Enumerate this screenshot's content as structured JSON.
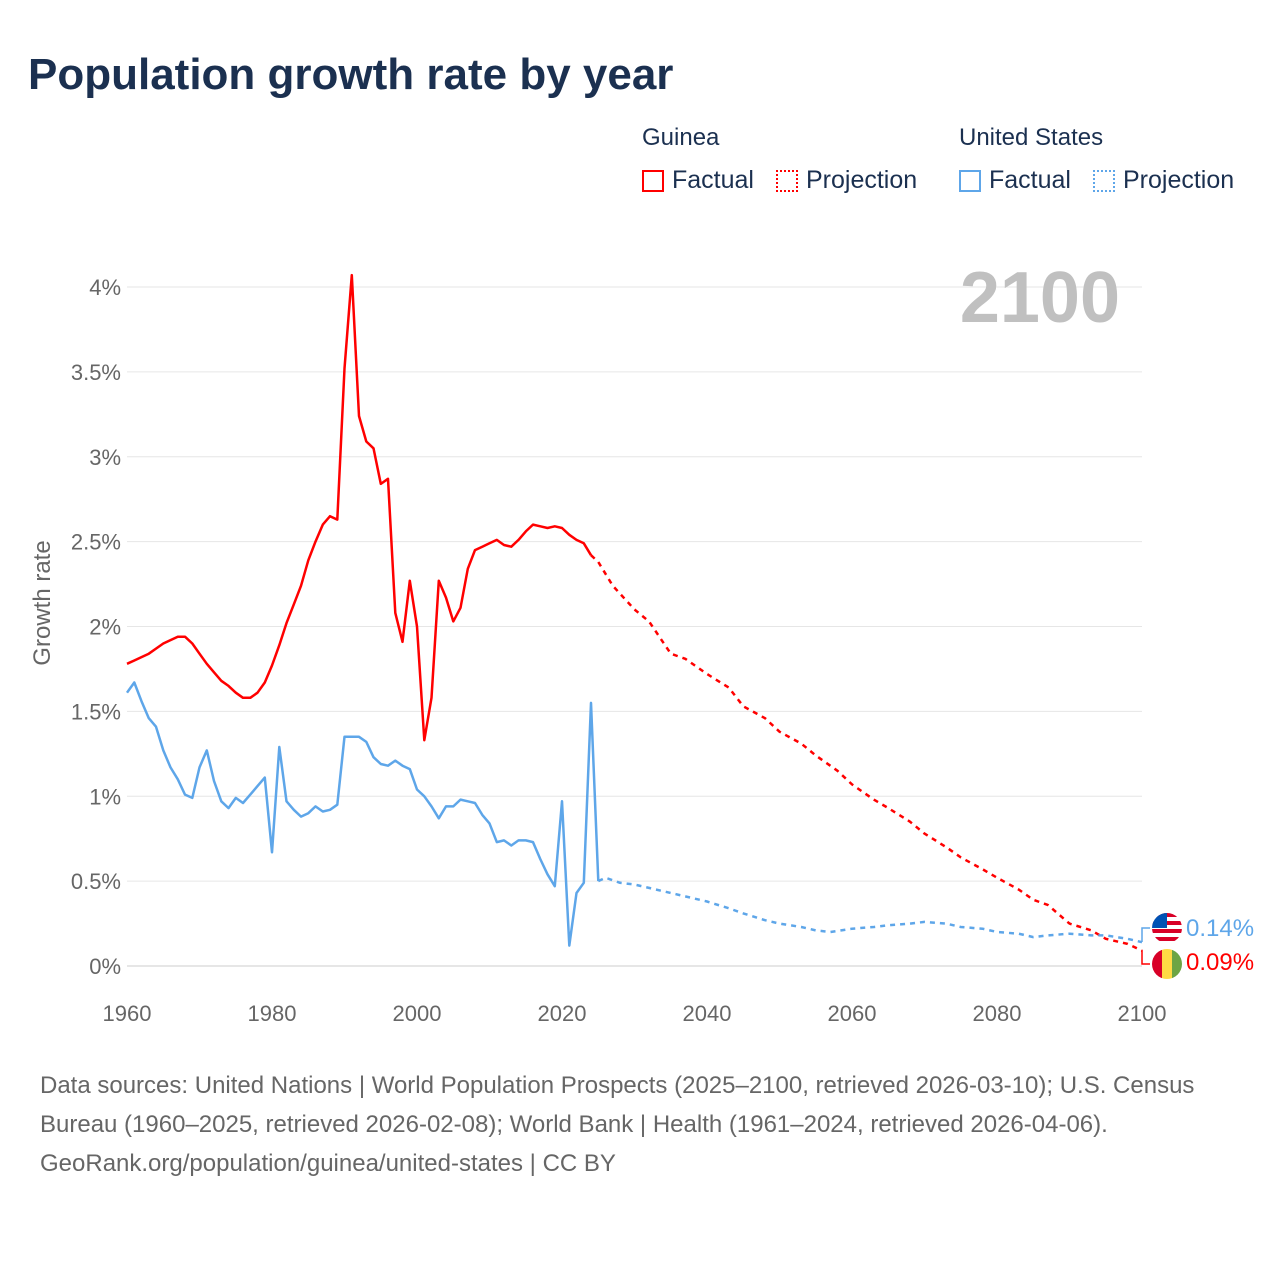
{
  "title": "Population growth rate by year",
  "legend": {
    "groups": [
      {
        "name": "Guinea",
        "factual": "Factual",
        "projection": "Projection",
        "color": "#ff0000"
      },
      {
        "name": "United States",
        "factual": "Factual",
        "projection": "Projection",
        "color": "#5ea6e9"
      }
    ]
  },
  "year_label": "2100",
  "end_labels": [
    {
      "country": "United States",
      "value": "0.14%",
      "icon": "us-flag-icon"
    },
    {
      "country": "Guinea",
      "value": "0.09%",
      "icon": "guinea-flag-icon"
    }
  ],
  "chart_data": {
    "type": "line",
    "title": "Population growth rate by year",
    "xlabel": "",
    "ylabel": "Growth rate",
    "xlim": [
      1960,
      2100
    ],
    "ylim": [
      0,
      4
    ],
    "x_ticks": [
      "1960",
      "1980",
      "2000",
      "2020",
      "2040",
      "2060",
      "2080",
      "2100"
    ],
    "x_tick_values": [
      1960,
      1980,
      2000,
      2020,
      2040,
      2060,
      2080,
      2100
    ],
    "y_ticks": [
      "0%",
      "0.5%",
      "1%",
      "1.5%",
      "2%",
      "2.5%",
      "3%",
      "3.5%",
      "4%"
    ],
    "y_tick_values": [
      0,
      0.5,
      1,
      1.5,
      2,
      2.5,
      3,
      3.5,
      4
    ],
    "grid": true,
    "legend_position": "top-right",
    "series": [
      {
        "name": "Guinea Factual",
        "color": "#ff0000",
        "dashed": false,
        "x": [
          1960,
          1961,
          1962,
          1963,
          1964,
          1965,
          1966,
          1967,
          1968,
          1969,
          1970,
          1971,
          1972,
          1973,
          1974,
          1975,
          1976,
          1977,
          1978,
          1979,
          1980,
          1981,
          1982,
          1983,
          1984,
          1985,
          1986,
          1987,
          1988,
          1989,
          1990,
          1991,
          1992,
          1993,
          1994,
          1995,
          1996,
          1997,
          1998,
          1999,
          2000,
          2001,
          2002,
          2003,
          2004,
          2005,
          2006,
          2007,
          2008,
          2009,
          2010,
          2011,
          2012,
          2013,
          2014,
          2015,
          2016,
          2017,
          2018,
          2019,
          2020,
          2021,
          2022,
          2023,
          2024
        ],
        "y": [
          1.78,
          1.8,
          1.82,
          1.84,
          1.87,
          1.9,
          1.92,
          1.94,
          1.94,
          1.9,
          1.84,
          1.78,
          1.73,
          1.68,
          1.65,
          1.61,
          1.58,
          1.58,
          1.61,
          1.67,
          1.77,
          1.89,
          2.02,
          2.13,
          2.24,
          2.39,
          2.5,
          2.6,
          2.65,
          2.63,
          3.52,
          4.07,
          3.24,
          3.09,
          3.05,
          2.84,
          2.87,
          2.08,
          1.91,
          2.27,
          2.0,
          1.33,
          1.58,
          2.27,
          2.17,
          2.03,
          2.11,
          2.34,
          2.45,
          2.47,
          2.49,
          2.51,
          2.48,
          2.47,
          2.51,
          2.56,
          2.6,
          2.59,
          2.58,
          2.59,
          2.58,
          2.54,
          2.51,
          2.49,
          2.42
        ]
      },
      {
        "name": "Guinea Projection",
        "color": "#ff0000",
        "dashed": true,
        "x": [
          2024,
          2025,
          2027,
          2030,
          2032,
          2035,
          2037,
          2040,
          2043,
          2045,
          2048,
          2050,
          2053,
          2055,
          2058,
          2060,
          2063,
          2065,
          2068,
          2070,
          2073,
          2075,
          2078,
          2080,
          2083,
          2085,
          2087,
          2090,
          2093,
          2095,
          2098,
          2100
        ],
        "y": [
          2.42,
          2.38,
          2.24,
          2.1,
          2.03,
          1.84,
          1.81,
          1.72,
          1.64,
          1.53,
          1.46,
          1.38,
          1.31,
          1.24,
          1.15,
          1.07,
          0.98,
          0.93,
          0.85,
          0.78,
          0.7,
          0.64,
          0.57,
          0.52,
          0.45,
          0.39,
          0.36,
          0.25,
          0.21,
          0.16,
          0.13,
          0.09
        ]
      },
      {
        "name": "United States Factual",
        "color": "#5ea6e9",
        "dashed": false,
        "x": [
          1960,
          1961,
          1962,
          1963,
          1964,
          1965,
          1966,
          1967,
          1968,
          1969,
          1970,
          1971,
          1972,
          1973,
          1974,
          1975,
          1976,
          1977,
          1978,
          1979,
          1980,
          1981,
          1982,
          1983,
          1984,
          1985,
          1986,
          1987,
          1988,
          1989,
          1990,
          1991,
          1992,
          1993,
          1994,
          1995,
          1996,
          1997,
          1998,
          1999,
          2000,
          2001,
          2002,
          2003,
          2004,
          2005,
          2006,
          2007,
          2008,
          2009,
          2010,
          2011,
          2012,
          2013,
          2014,
          2015,
          2016,
          2017,
          2018,
          2019,
          2020,
          2021,
          2022,
          2023,
          2024,
          2025
        ],
        "y": [
          1.61,
          1.67,
          1.56,
          1.46,
          1.41,
          1.27,
          1.17,
          1.1,
          1.01,
          0.99,
          1.17,
          1.27,
          1.09,
          0.97,
          0.93,
          0.99,
          0.96,
          1.01,
          1.06,
          1.11,
          0.67,
          1.29,
          0.97,
          0.92,
          0.88,
          0.9,
          0.94,
          0.91,
          0.92,
          0.95,
          1.35,
          1.35,
          1.35,
          1.32,
          1.23,
          1.19,
          1.18,
          1.21,
          1.18,
          1.16,
          1.04,
          1.0,
          0.94,
          0.87,
          0.94,
          0.94,
          0.98,
          0.97,
          0.96,
          0.89,
          0.84,
          0.73,
          0.74,
          0.71,
          0.74,
          0.74,
          0.73,
          0.63,
          0.54,
          0.47,
          0.97,
          0.12,
          0.43,
          0.49,
          1.55,
          0.5
        ]
      },
      {
        "name": "United States Projection",
        "color": "#5ea6e9",
        "dashed": true,
        "x": [
          2025,
          2026,
          2028,
          2030,
          2033,
          2035,
          2038,
          2040,
          2043,
          2045,
          2048,
          2050,
          2053,
          2055,
          2057,
          2060,
          2063,
          2065,
          2068,
          2070,
          2073,
          2075,
          2078,
          2080,
          2083,
          2085,
          2087,
          2090,
          2093,
          2095,
          2098,
          2100
        ],
        "y": [
          0.5,
          0.52,
          0.49,
          0.48,
          0.45,
          0.43,
          0.4,
          0.38,
          0.34,
          0.31,
          0.27,
          0.25,
          0.23,
          0.21,
          0.2,
          0.22,
          0.23,
          0.24,
          0.25,
          0.26,
          0.25,
          0.23,
          0.22,
          0.2,
          0.19,
          0.17,
          0.18,
          0.19,
          0.18,
          0.18,
          0.16,
          0.14
        ]
      }
    ]
  },
  "footer": {
    "sources": "Data sources: United Nations | World Population Prospects (2025–2100, retrieved 2026-03-10); U.S. Census Bureau (1960–2025, retrieved 2026-02-08); World Bank | Health (1961–2024, retrieved 2026-04-06).",
    "link": "GeoRank.org/population/guinea/united-states | CC BY"
  }
}
